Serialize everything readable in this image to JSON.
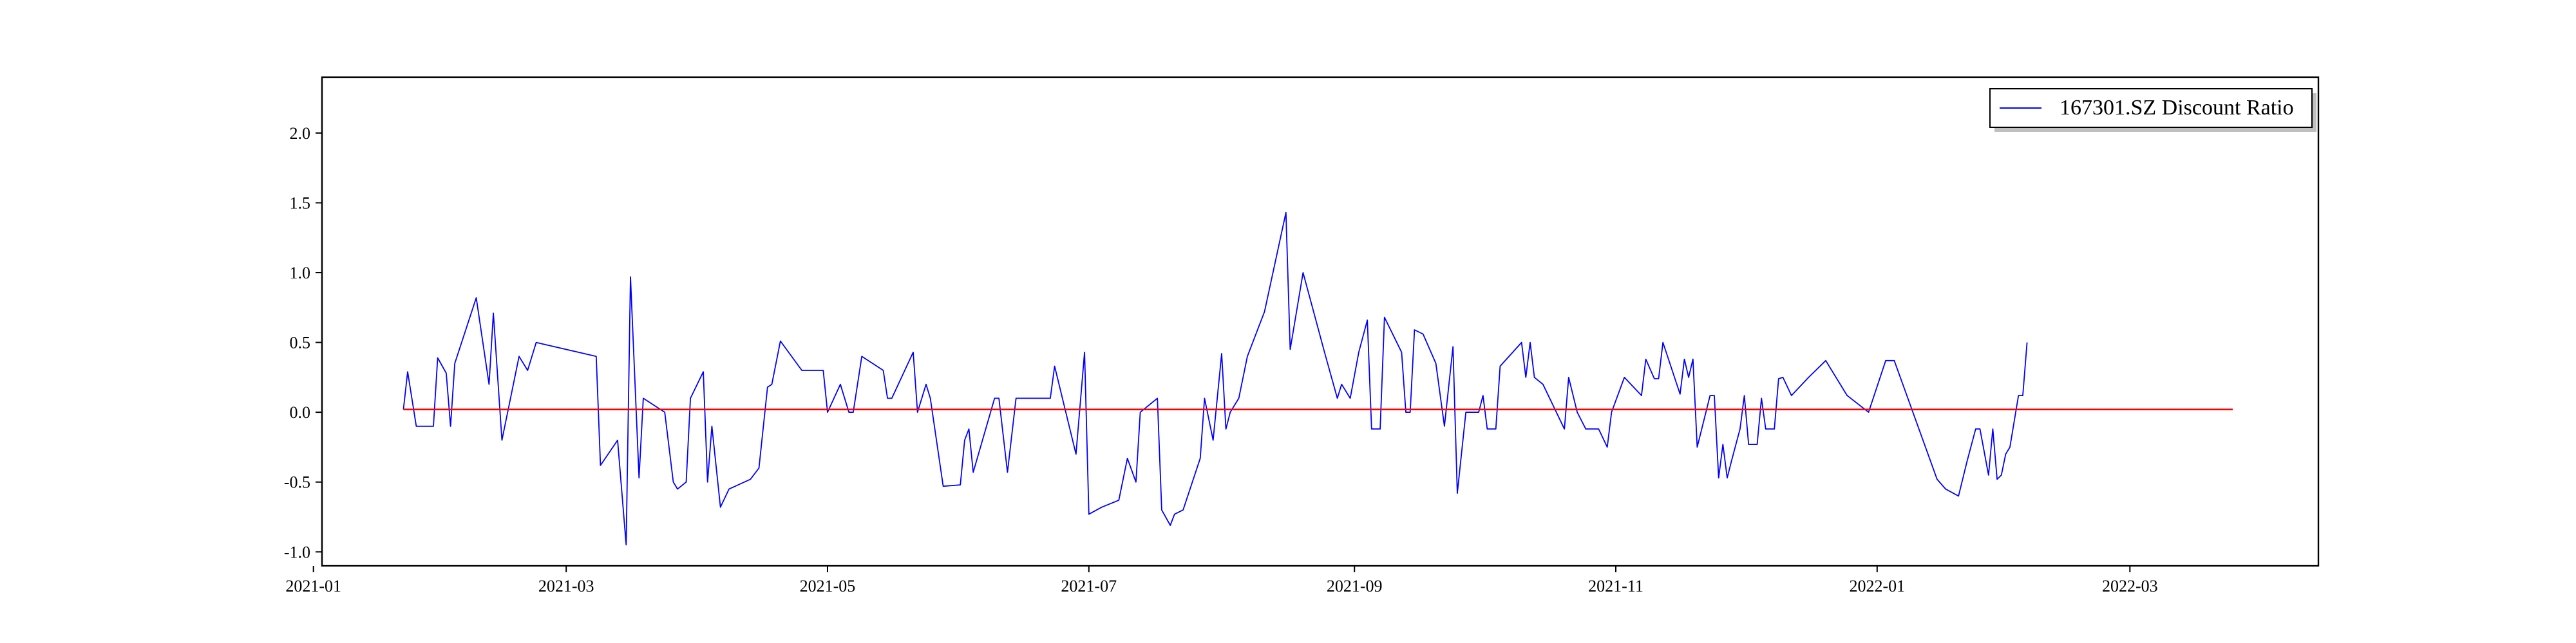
{
  "chart_data": {
    "type": "line",
    "title": "",
    "xlabel": "",
    "ylabel": "",
    "xlim": [
      "2021-01-03",
      "2022-04-14"
    ],
    "ylim": [
      -1.1,
      2.4
    ],
    "x_ticks": [
      "2021-01",
      "2021-03",
      "2021-05",
      "2021-07",
      "2021-09",
      "2021-11",
      "2022-01",
      "2022-03"
    ],
    "y_ticks": [
      "-1.0",
      "-0.5",
      "0.0",
      "0.5",
      "1.0",
      "1.5",
      "2.0"
    ],
    "y_tick_values": [
      -1.0,
      -0.5,
      0.0,
      0.5,
      1.0,
      1.5,
      2.0
    ],
    "grid": false,
    "legend": {
      "position": "top-right"
    },
    "series": [
      {
        "name": "167301.SZ Discount Ratio",
        "color": "#0000ff",
        "points": [
          [
            "2021-01-22",
            0.02
          ],
          [
            "2021-01-23",
            0.29
          ],
          [
            "2021-01-25",
            -0.1
          ],
          [
            "2021-01-29",
            -0.1
          ],
          [
            "2021-01-30",
            0.39
          ],
          [
            "2021-02-01",
            0.28
          ],
          [
            "2021-02-02",
            -0.1
          ],
          [
            "2021-02-03",
            0.35
          ],
          [
            "2021-02-08",
            0.82
          ],
          [
            "2021-02-11",
            0.2
          ],
          [
            "2021-02-12",
            0.71
          ],
          [
            "2021-02-14",
            -0.2
          ],
          [
            "2021-02-18",
            0.4
          ],
          [
            "2021-02-20",
            0.3
          ],
          [
            "2021-02-22",
            0.5
          ],
          [
            "2021-03-08",
            0.4
          ],
          [
            "2021-03-09",
            -0.38
          ],
          [
            "2021-03-13",
            -0.2
          ],
          [
            "2021-03-15",
            -0.95
          ],
          [
            "2021-03-16",
            0.97
          ],
          [
            "2021-03-18",
            -0.47
          ],
          [
            "2021-03-19",
            0.1
          ],
          [
            "2021-03-24",
            0.0
          ],
          [
            "2021-03-26",
            -0.5
          ],
          [
            "2021-03-27",
            -0.55
          ],
          [
            "2021-03-29",
            -0.5
          ],
          [
            "2021-03-30",
            0.1
          ],
          [
            "2021-04-02",
            0.29
          ],
          [
            "2021-04-03",
            -0.5
          ],
          [
            "2021-04-04",
            -0.1
          ],
          [
            "2021-04-06",
            -0.68
          ],
          [
            "2021-04-08",
            -0.55
          ],
          [
            "2021-04-13",
            -0.48
          ],
          [
            "2021-04-15",
            -0.4
          ],
          [
            "2021-04-17",
            0.18
          ],
          [
            "2021-04-18",
            0.2
          ],
          [
            "2021-04-20",
            0.51
          ],
          [
            "2021-04-25",
            0.3
          ],
          [
            "2021-04-30",
            0.3
          ],
          [
            "2021-05-01",
            0.0
          ],
          [
            "2021-05-04",
            0.2
          ],
          [
            "2021-05-06",
            0.0
          ],
          [
            "2021-05-07",
            0.0
          ],
          [
            "2021-05-09",
            0.4
          ],
          [
            "2021-05-14",
            0.3
          ],
          [
            "2021-05-15",
            0.1
          ],
          [
            "2021-05-16",
            0.1
          ],
          [
            "2021-05-21",
            0.43
          ],
          [
            "2021-05-22",
            0.0
          ],
          [
            "2021-05-24",
            0.2
          ],
          [
            "2021-05-25",
            0.1
          ],
          [
            "2021-05-28",
            -0.53
          ],
          [
            "2021-06-01",
            -0.52
          ],
          [
            "2021-06-02",
            -0.2
          ],
          [
            "2021-06-03",
            -0.12
          ],
          [
            "2021-06-04",
            -0.43
          ],
          [
            "2021-06-09",
            0.1
          ],
          [
            "2021-06-10",
            0.1
          ],
          [
            "2021-06-12",
            -0.43
          ],
          [
            "2021-06-14",
            0.1
          ],
          [
            "2021-06-15",
            0.1
          ],
          [
            "2021-06-22",
            0.1
          ],
          [
            "2021-06-23",
            0.33
          ],
          [
            "2021-06-28",
            -0.3
          ],
          [
            "2021-06-30",
            0.43
          ],
          [
            "2021-07-01",
            -0.73
          ],
          [
            "2021-07-04",
            -0.68
          ],
          [
            "2021-07-08",
            -0.63
          ],
          [
            "2021-07-10",
            -0.33
          ],
          [
            "2021-07-12",
            -0.5
          ],
          [
            "2021-07-13",
            0.0
          ],
          [
            "2021-07-17",
            0.1
          ],
          [
            "2021-07-18",
            -0.7
          ],
          [
            "2021-07-20",
            -0.81
          ],
          [
            "2021-07-21",
            -0.73
          ],
          [
            "2021-07-23",
            -0.7
          ],
          [
            "2021-07-27",
            -0.33
          ],
          [
            "2021-07-28",
            0.1
          ],
          [
            "2021-07-30",
            -0.2
          ],
          [
            "2021-08-01",
            0.42
          ],
          [
            "2021-08-02",
            -0.12
          ],
          [
            "2021-08-03",
            0.0
          ],
          [
            "2021-08-05",
            0.1
          ],
          [
            "2021-08-07",
            0.4
          ],
          [
            "2021-08-11",
            0.72
          ],
          [
            "2021-08-16",
            1.43
          ],
          [
            "2021-08-17",
            0.45
          ],
          [
            "2021-08-20",
            1.0
          ],
          [
            "2021-08-25",
            0.43
          ],
          [
            "2021-08-28",
            0.1
          ],
          [
            "2021-08-29",
            0.2
          ],
          [
            "2021-08-31",
            0.1
          ],
          [
            "2021-09-02",
            0.43
          ],
          [
            "2021-09-04",
            0.66
          ],
          [
            "2021-09-05",
            -0.12
          ],
          [
            "2021-09-07",
            -0.12
          ],
          [
            "2021-09-08",
            0.68
          ],
          [
            "2021-09-12",
            0.43
          ],
          [
            "2021-09-13",
            0.0
          ],
          [
            "2021-09-14",
            0.0
          ],
          [
            "2021-09-15",
            0.59
          ],
          [
            "2021-09-17",
            0.56
          ],
          [
            "2021-09-20",
            0.35
          ],
          [
            "2021-09-22",
            -0.1
          ],
          [
            "2021-09-24",
            0.47
          ],
          [
            "2021-09-25",
            -0.58
          ],
          [
            "2021-09-27",
            0.0
          ],
          [
            "2021-09-30",
            0.0
          ],
          [
            "2021-10-01",
            0.12
          ],
          [
            "2021-10-02",
            -0.12
          ],
          [
            "2021-10-04",
            -0.12
          ],
          [
            "2021-10-05",
            0.33
          ],
          [
            "2021-10-10",
            0.5
          ],
          [
            "2021-10-11",
            0.25
          ],
          [
            "2021-10-12",
            0.5
          ],
          [
            "2021-10-13",
            0.25
          ],
          [
            "2021-10-15",
            0.2
          ],
          [
            "2021-10-20",
            -0.12
          ],
          [
            "2021-10-21",
            0.25
          ],
          [
            "2021-10-23",
            0.0
          ],
          [
            "2021-10-25",
            -0.12
          ],
          [
            "2021-10-28",
            -0.12
          ],
          [
            "2021-10-30",
            -0.25
          ],
          [
            "2021-10-31",
            0.0
          ],
          [
            "2021-11-03",
            0.25
          ],
          [
            "2021-11-07",
            0.12
          ],
          [
            "2021-11-08",
            0.38
          ],
          [
            "2021-11-10",
            0.24
          ],
          [
            "2021-11-11",
            0.24
          ],
          [
            "2021-11-12",
            0.5
          ],
          [
            "2021-11-16",
            0.13
          ],
          [
            "2021-11-17",
            0.38
          ],
          [
            "2021-11-18",
            0.25
          ],
          [
            "2021-11-19",
            0.38
          ],
          [
            "2021-11-20",
            -0.25
          ],
          [
            "2021-11-23",
            0.12
          ],
          [
            "2021-11-24",
            0.12
          ],
          [
            "2021-11-25",
            -0.47
          ],
          [
            "2021-11-26",
            -0.23
          ],
          [
            "2021-11-27",
            -0.47
          ],
          [
            "2021-11-28",
            -0.35
          ],
          [
            "2021-11-30",
            -0.12
          ],
          [
            "2021-12-01",
            0.12
          ],
          [
            "2021-12-02",
            -0.23
          ],
          [
            "2021-12-04",
            -0.23
          ],
          [
            "2021-12-05",
            0.1
          ],
          [
            "2021-12-06",
            -0.12
          ],
          [
            "2021-12-08",
            -0.12
          ],
          [
            "2021-12-09",
            0.24
          ],
          [
            "2021-12-10",
            0.25
          ],
          [
            "2021-12-12",
            0.12
          ],
          [
            "2021-12-16",
            0.25
          ],
          [
            "2021-12-20",
            0.37
          ],
          [
            "2021-12-25",
            0.12
          ],
          [
            "2021-12-30",
            0.0
          ],
          [
            "2022-01-03",
            0.37
          ],
          [
            "2022-01-05",
            0.37
          ],
          [
            "2022-01-15",
            -0.48
          ],
          [
            "2022-01-17",
            -0.55
          ],
          [
            "2022-01-20",
            -0.6
          ],
          [
            "2022-01-22",
            -0.35
          ],
          [
            "2022-01-24",
            -0.12
          ],
          [
            "2022-01-25",
            -0.12
          ],
          [
            "2022-01-27",
            -0.45
          ],
          [
            "2022-01-28",
            -0.12
          ],
          [
            "2022-01-29",
            -0.48
          ],
          [
            "2022-01-30",
            -0.45
          ],
          [
            "2022-01-31",
            -0.3
          ],
          [
            "2022-02-01",
            -0.25
          ],
          [
            "2022-02-03",
            0.12
          ],
          [
            "2022-02-04",
            0.12
          ],
          [
            "2022-02-05",
            0.5
          ]
        ]
      },
      {
        "name": "",
        "color": "#ff0000",
        "points": [
          [
            "2021-01-22",
            0.02
          ],
          [
            "2022-03-25",
            0.02
          ]
        ]
      }
    ]
  }
}
